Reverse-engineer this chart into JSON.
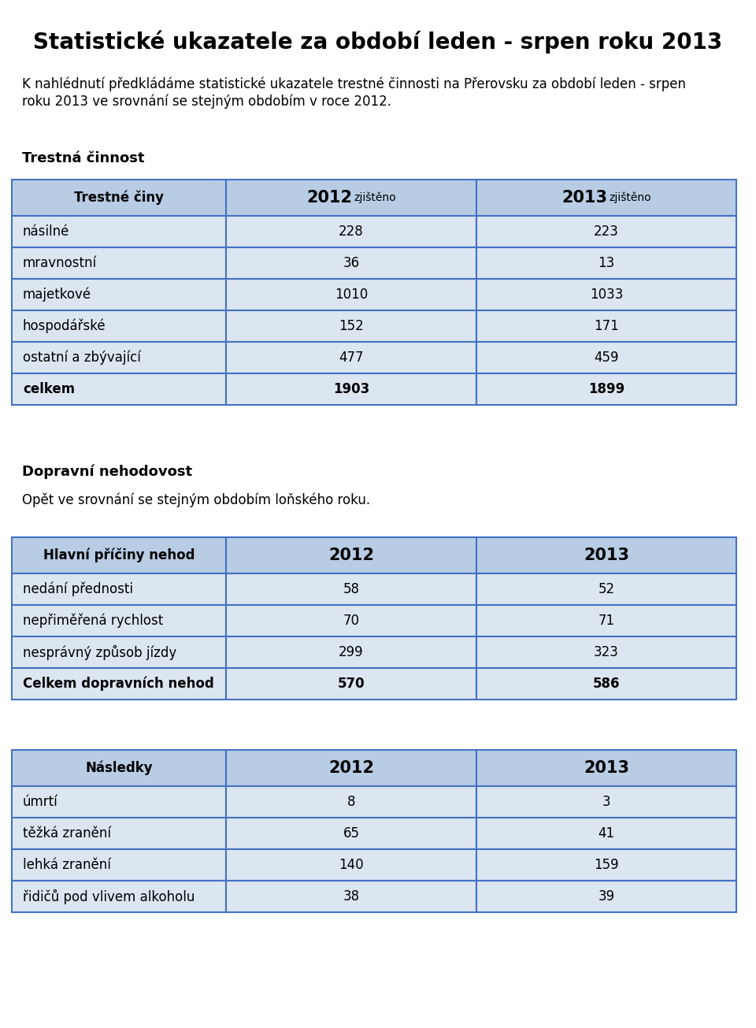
{
  "title": "Statistické ukazatele za období leden - srpen roku 2013",
  "intro_text": "K nahlédnutí předkládáme statistické ukazatele trestné činnosti na Přerovsku za období leden - srpen\nroku 2013 ve srovnání se stejným obdobím v roce 2012.",
  "section1_title": "Trestná činnost",
  "table1_header_year1": "2012",
  "table1_header_sub1": "zjištěno",
  "table1_header_year2": "2013",
  "table1_header_sub2": "zjištěno",
  "table1_col1": [
    "násilné",
    "mravnostní",
    "majetkové",
    "hospodářské",
    "ostatní a zbývající",
    "celkem"
  ],
  "table1_col2": [
    "228",
    "36",
    "1010",
    "152",
    "477",
    "1903"
  ],
  "table1_col3": [
    "223",
    "13",
    "1033",
    "171",
    "459",
    "1899"
  ],
  "section2_title": "Dopravní nehodovost",
  "section2_text": "Opět ve srovnání se stejným obdobím loňského roku.",
  "table2_header_col1": "Hlavní příčiny nehod",
  "table2_col1": [
    "nedání přednosti",
    "nepřiměřená rychlost",
    "nesprávný způsob jízdy",
    "Celkem dopravních nehod"
  ],
  "table2_col2": [
    "58",
    "70",
    "299",
    "570"
  ],
  "table2_col3": [
    "52",
    "71",
    "323",
    "586"
  ],
  "table3_header_col1": "Následky",
  "table3_col1": [
    "úmrtí",
    "těžká zranění",
    "lehká zranění",
    "řidičů pod vlivem alkoholu"
  ],
  "table3_col2": [
    "8",
    "65",
    "140",
    "38"
  ],
  "table3_col3": [
    "3",
    "41",
    "159",
    "39"
  ],
  "header_bg": "#b8cce4",
  "row_bg": "#dce6f1",
  "border_color": "#4472c4",
  "bg_color": "#ffffff",
  "table1_header_col1": "Trestné činy"
}
